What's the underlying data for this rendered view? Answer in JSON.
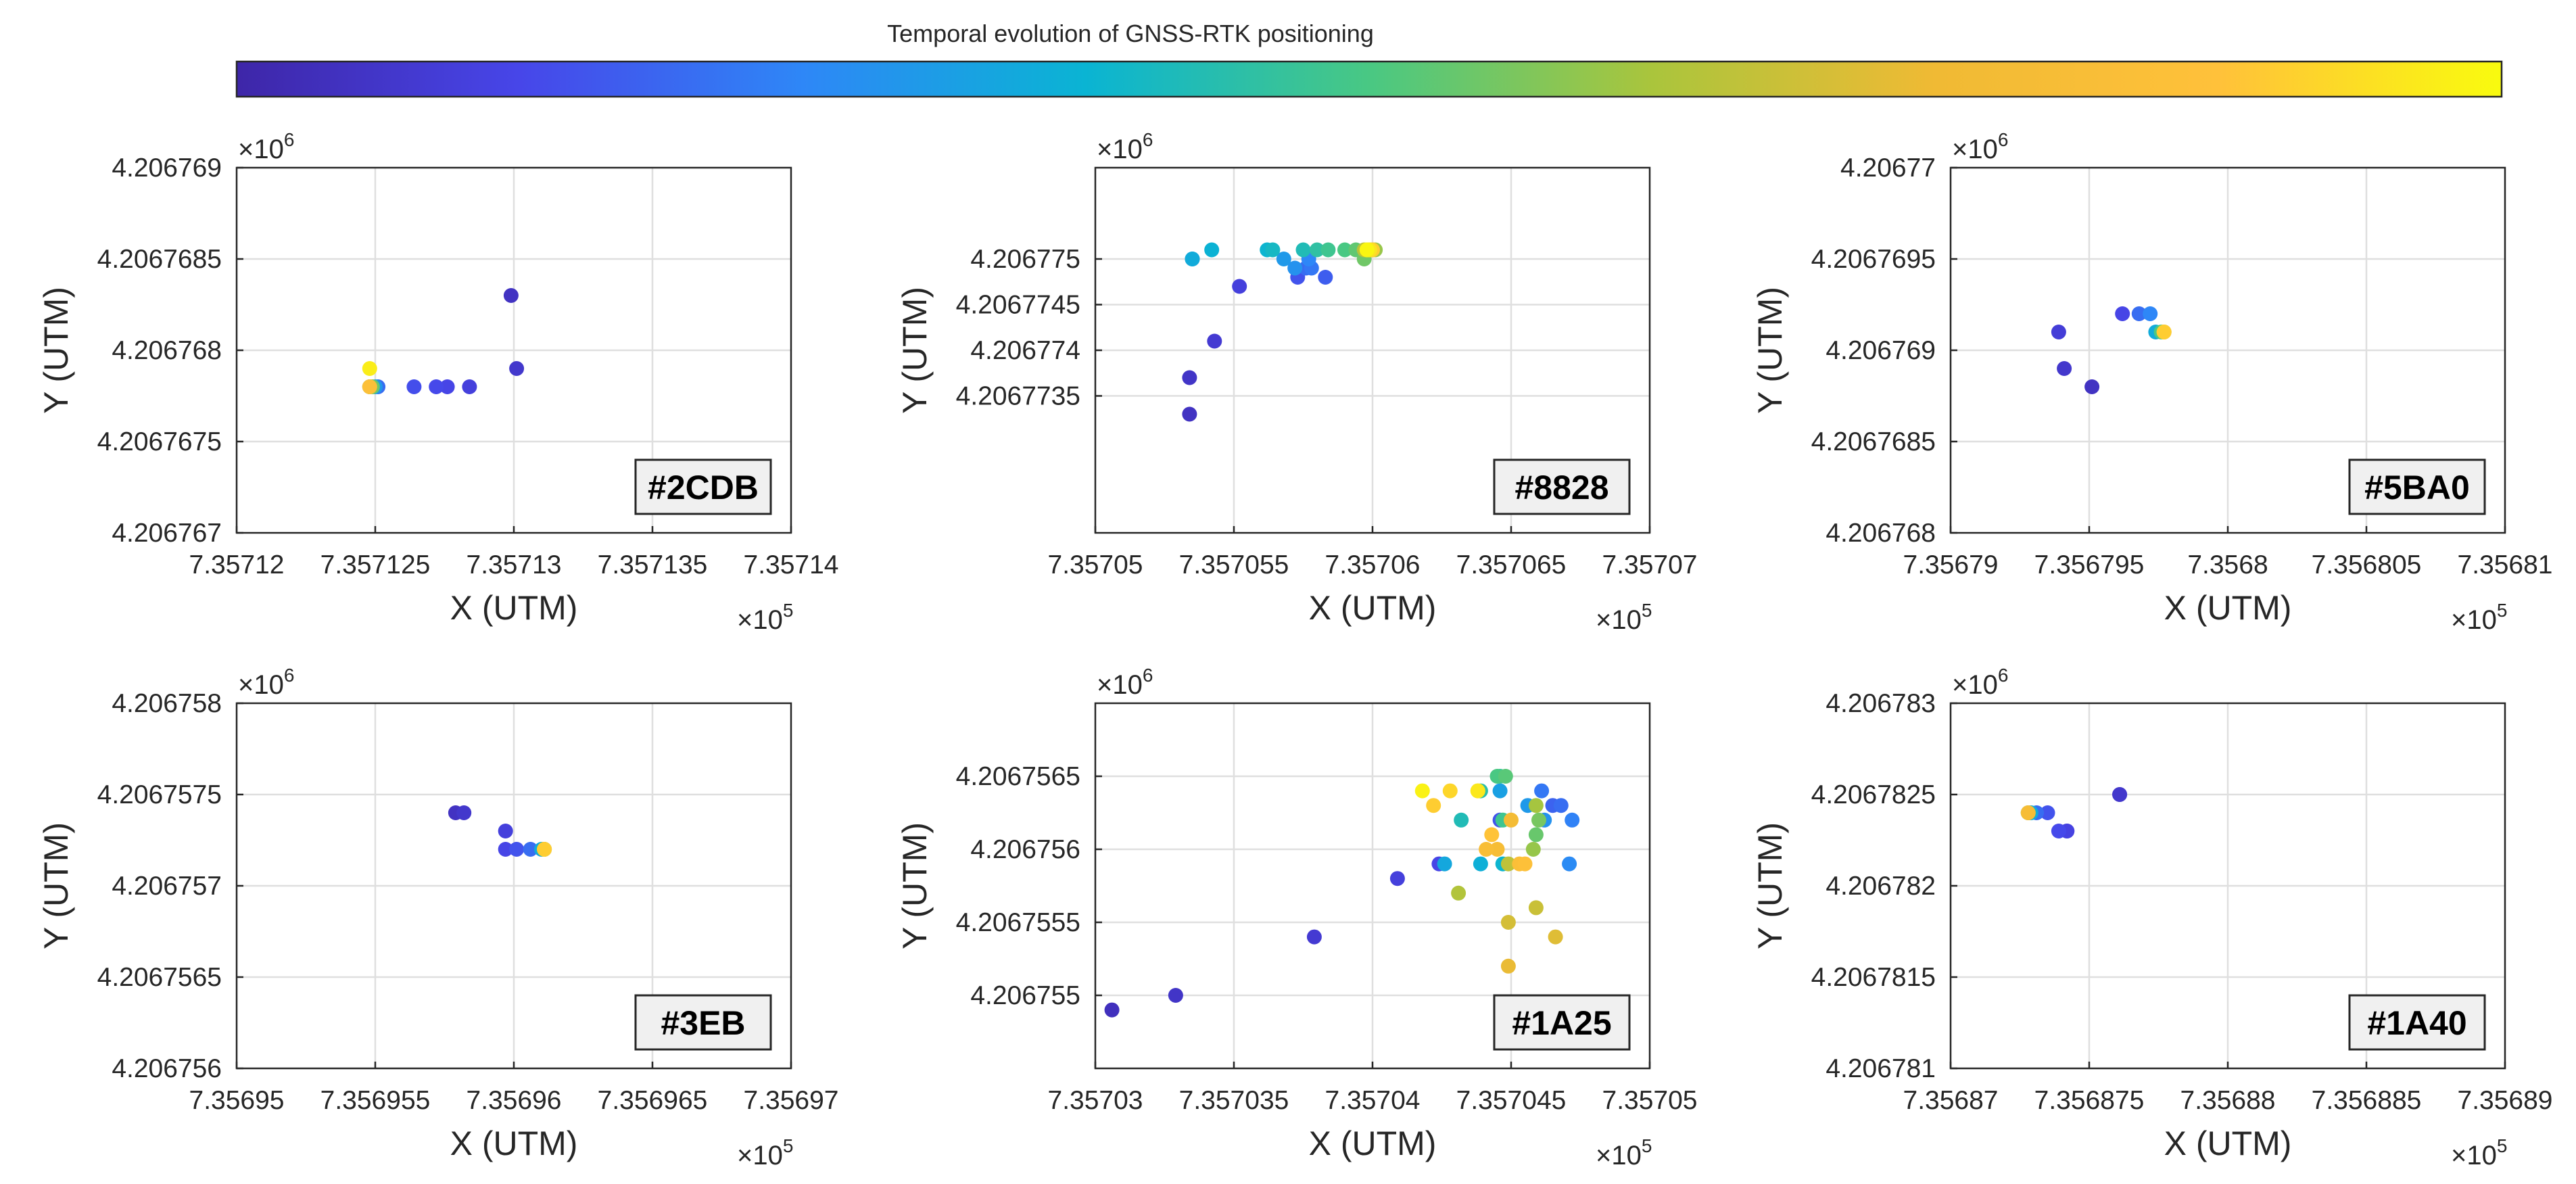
{
  "colorbar": {
    "title": "Temporal evolution of GNSS-RTK positioning",
    "stops": [
      "#3e26a8",
      "#4746e9",
      "#2e87f7",
      "#0ab4d3",
      "#49c883",
      "#aac53c",
      "#f0ba34",
      "#ffc13a",
      "#f9fb0e"
    ]
  },
  "multiplier_labels": {
    "x_base": "×10",
    "x_exp": "5",
    "y_base": "×10",
    "y_exp": "6"
  },
  "chart_data": [
    {
      "type": "scatter",
      "id_label": "#2CDB",
      "xlabel": "X (UTM)",
      "ylabel": "Y (UTM)",
      "xlim": [
        7.35712,
        7.35714
      ],
      "ylim": [
        4.206767,
        4.206769
      ],
      "xticks": [
        7.35712,
        7.357125,
        7.35713,
        7.357135,
        7.35714
      ],
      "xtick_labels": [
        "7.35712",
        "7.357125",
        "7.35713",
        "7.357135",
        "7.35714"
      ],
      "yticks": [
        4.206767,
        4.2067675,
        4.206768,
        4.2067685,
        4.206769
      ],
      "ytick_labels": [
        "4.206767",
        "4.2067675",
        "4.206768",
        "4.2067685",
        "4.206769"
      ],
      "points": [
        {
          "x": 7.3571299,
          "y": 4.2067683,
          "t": 0.05
        },
        {
          "x": 7.3571301,
          "y": 4.2067679,
          "t": 0.07
        },
        {
          "x": 7.3571284,
          "y": 4.2067678,
          "t": 0.1
        },
        {
          "x": 7.3571276,
          "y": 4.2067678,
          "t": 0.12
        },
        {
          "x": 7.3571272,
          "y": 4.2067678,
          "t": 0.13
        },
        {
          "x": 7.3571264,
          "y": 4.2067678,
          "t": 0.14
        },
        {
          "x": 7.3571251,
          "y": 4.2067678,
          "t": 0.2
        },
        {
          "x": 7.357125,
          "y": 4.2067678,
          "t": 0.3
        },
        {
          "x": 7.3571248,
          "y": 4.2067678,
          "t": 0.4
        },
        {
          "x": 7.3571249,
          "y": 4.2067678,
          "t": 0.55
        },
        {
          "x": 7.3571248,
          "y": 4.2067678,
          "t": 0.7
        },
        {
          "x": 7.3571248,
          "y": 4.2067678,
          "t": 0.85
        },
        {
          "x": 7.3571248,
          "y": 4.2067679,
          "t": 0.97
        }
      ]
    },
    {
      "type": "scatter",
      "id_label": "#8828",
      "xlabel": "X (UTM)",
      "ylabel": "Y (UTM)",
      "xlim": [
        7.35705,
        7.35707
      ],
      "ylim": [
        4.206772,
        4.206776
      ],
      "xticks": [
        7.35705,
        7.357055,
        7.35706,
        7.357065,
        7.35707
      ],
      "xtick_labels": [
        "7.35705",
        "7.357055",
        "7.35706",
        "7.357065",
        "7.35707"
      ],
      "yticks": [
        4.2067735,
        4.206774,
        4.2067745,
        4.206775
      ],
      "ytick_labels": [
        "4.2067735",
        "4.206774",
        "4.2067745",
        "4.206775"
      ],
      "points": [
        {
          "x": 7.3570534,
          "y": 4.2067733,
          "t": 0.05
        },
        {
          "x": 7.3570534,
          "y": 4.2067737,
          "t": 0.06
        },
        {
          "x": 7.3570543,
          "y": 4.2067741,
          "t": 0.08
        },
        {
          "x": 7.3570552,
          "y": 4.2067747,
          "t": 0.1
        },
        {
          "x": 7.3570573,
          "y": 4.2067748,
          "t": 0.15
        },
        {
          "x": 7.3570583,
          "y": 4.2067748,
          "t": 0.17
        },
        {
          "x": 7.3570576,
          "y": 4.2067749,
          "t": 0.2
        },
        {
          "x": 7.3570578,
          "y": 4.2067749,
          "t": 0.22
        },
        {
          "x": 7.3570577,
          "y": 4.206775,
          "t": 0.25
        },
        {
          "x": 7.3570572,
          "y": 4.2067749,
          "t": 0.28
        },
        {
          "x": 7.3570568,
          "y": 4.206775,
          "t": 0.3
        },
        {
          "x": 7.3570535,
          "y": 4.206775,
          "t": 0.32
        },
        {
          "x": 7.3570535,
          "y": 4.206775,
          "t": 0.35
        },
        {
          "x": 7.3570542,
          "y": 4.2067751,
          "t": 0.37
        },
        {
          "x": 7.3570562,
          "y": 4.2067751,
          "t": 0.38
        },
        {
          "x": 7.3570564,
          "y": 4.2067751,
          "t": 0.4
        },
        {
          "x": 7.3570575,
          "y": 4.2067751,
          "t": 0.42
        },
        {
          "x": 7.357058,
          "y": 4.2067751,
          "t": 0.45
        },
        {
          "x": 7.3570584,
          "y": 4.2067751,
          "t": 0.48
        },
        {
          "x": 7.357059,
          "y": 4.2067751,
          "t": 0.5
        },
        {
          "x": 7.3570594,
          "y": 4.2067751,
          "t": 0.53
        },
        {
          "x": 7.3570597,
          "y": 4.206775,
          "t": 0.55
        },
        {
          "x": 7.3570601,
          "y": 4.2067751,
          "t": 0.6
        },
        {
          "x": 7.3570597,
          "y": 4.2067751,
          "t": 0.65
        },
        {
          "x": 7.35706,
          "y": 4.2067751,
          "t": 0.7
        },
        {
          "x": 7.3570598,
          "y": 4.2067751,
          "t": 0.75
        },
        {
          "x": 7.3570599,
          "y": 4.2067751,
          "t": 0.8
        },
        {
          "x": 7.3570599,
          "y": 4.2067751,
          "t": 0.85
        },
        {
          "x": 7.35706,
          "y": 4.2067751,
          "t": 0.9
        },
        {
          "x": 7.3570599,
          "y": 4.2067751,
          "t": 0.95
        },
        {
          "x": 7.3570598,
          "y": 4.2067751,
          "t": 0.99
        }
      ]
    },
    {
      "type": "scatter",
      "id_label": "#5BA0",
      "xlabel": "X (UTM)",
      "ylabel": "Y (UTM)",
      "xlim": [
        7.35679,
        7.35681
      ],
      "ylim": [
        4.206768,
        4.20677
      ],
      "xticks": [
        7.35679,
        7.356795,
        7.3568,
        7.356805,
        7.35681
      ],
      "xtick_labels": [
        "7.35679",
        "7.356795",
        "7.3568",
        "7.356805",
        "7.35681"
      ],
      "yticks": [
        4.206768,
        4.2067685,
        4.206769,
        4.2067695,
        4.20677
      ],
      "ytick_labels": [
        "4.206768",
        "4.2067685",
        "4.206769",
        "4.2067695",
        "4.20677"
      ],
      "points": [
        {
          "x": 7.3567951,
          "y": 4.2067688,
          "t": 0.05
        },
        {
          "x": 7.3567941,
          "y": 4.2067689,
          "t": 0.07
        },
        {
          "x": 7.3567939,
          "y": 4.2067691,
          "t": 0.09
        },
        {
          "x": 7.3567962,
          "y": 4.2067692,
          "t": 0.12
        },
        {
          "x": 7.3567968,
          "y": 4.2067692,
          "t": 0.2
        },
        {
          "x": 7.3567972,
          "y": 4.2067692,
          "t": 0.25
        },
        {
          "x": 7.3567974,
          "y": 4.2067691,
          "t": 0.35
        },
        {
          "x": 7.3567976,
          "y": 4.2067691,
          "t": 0.5
        },
        {
          "x": 7.3567977,
          "y": 4.2067691,
          "t": 0.65
        },
        {
          "x": 7.3567977,
          "y": 4.2067691,
          "t": 0.8
        },
        {
          "x": 7.3567977,
          "y": 4.2067691,
          "t": 0.9
        }
      ]
    },
    {
      "type": "scatter",
      "id_label": "#3EB",
      "xlabel": "X (UTM)",
      "ylabel": "Y (UTM)",
      "xlim": [
        7.35695,
        7.35697
      ],
      "ylim": [
        4.206756,
        4.206758
      ],
      "xticks": [
        7.35695,
        7.356955,
        7.35696,
        7.356965,
        7.35697
      ],
      "xtick_labels": [
        "7.35695",
        "7.356955",
        "7.35696",
        "7.356965",
        "7.35697"
      ],
      "yticks": [
        4.206756,
        4.2067565,
        4.206757,
        4.2067575,
        4.206758
      ],
      "ytick_labels": [
        "4.206756",
        "4.2067565",
        "4.206757",
        "4.2067575",
        "4.206758"
      ],
      "points": [
        {
          "x": 7.3569579,
          "y": 4.2067574,
          "t": 0.05
        },
        {
          "x": 7.3569582,
          "y": 4.2067574,
          "t": 0.07
        },
        {
          "x": 7.3569597,
          "y": 4.2067573,
          "t": 0.1
        },
        {
          "x": 7.3569597,
          "y": 4.2067572,
          "t": 0.12
        },
        {
          "x": 7.3569601,
          "y": 4.2067572,
          "t": 0.15
        },
        {
          "x": 7.3569606,
          "y": 4.2067572,
          "t": 0.2
        },
        {
          "x": 7.356961,
          "y": 4.2067572,
          "t": 0.35
        },
        {
          "x": 7.3569611,
          "y": 4.2067572,
          "t": 0.5
        },
        {
          "x": 7.3569611,
          "y": 4.2067572,
          "t": 0.65
        },
        {
          "x": 7.3569611,
          "y": 4.2067572,
          "t": 0.8
        },
        {
          "x": 7.3569611,
          "y": 4.2067572,
          "t": 0.9
        }
      ]
    },
    {
      "type": "scatter",
      "id_label": "#1A25",
      "xlabel": "X (UTM)",
      "ylabel": "Y (UTM)",
      "xlim": [
        7.35703,
        7.35705
      ],
      "ylim": [
        4.2067545,
        4.206757
      ],
      "xticks": [
        7.35703,
        7.357035,
        7.35704,
        7.357045,
        7.35705
      ],
      "xtick_labels": [
        "7.35703",
        "7.357035",
        "7.35704",
        "7.357045",
        "7.35705"
      ],
      "yticks": [
        4.206755,
        4.2067555,
        4.206756,
        4.2067565
      ],
      "ytick_labels": [
        "4.206755",
        "4.2067555",
        "4.206756",
        "4.2067565"
      ],
      "points": [
        {
          "x": 7.3570306,
          "y": 4.2067549,
          "t": 0.04
        },
        {
          "x": 7.3570329,
          "y": 4.206755,
          "t": 0.06
        },
        {
          "x": 7.3570379,
          "y": 4.2067554,
          "t": 0.08
        },
        {
          "x": 7.3570409,
          "y": 4.2067558,
          "t": 0.1
        },
        {
          "x": 7.3570424,
          "y": 4.2067559,
          "t": 0.12
        },
        {
          "x": 7.3570446,
          "y": 4.2067562,
          "t": 0.15
        },
        {
          "x": 7.3570465,
          "y": 4.2067563,
          "t": 0.18
        },
        {
          "x": 7.3570468,
          "y": 4.2067563,
          "t": 0.2
        },
        {
          "x": 7.3570461,
          "y": 4.2067564,
          "t": 0.22
        },
        {
          "x": 7.3570472,
          "y": 4.2067562,
          "t": 0.24
        },
        {
          "x": 7.3570471,
          "y": 4.2067559,
          "t": 0.26
        },
        {
          "x": 7.3570462,
          "y": 4.2067562,
          "t": 0.28
        },
        {
          "x": 7.3570456,
          "y": 4.2067563,
          "t": 0.3
        },
        {
          "x": 7.3570446,
          "y": 4.2067564,
          "t": 0.32
        },
        {
          "x": 7.3570426,
          "y": 4.2067559,
          "t": 0.34
        },
        {
          "x": 7.3570439,
          "y": 4.2067559,
          "t": 0.36
        },
        {
          "x": 7.3570447,
          "y": 4.2067559,
          "t": 0.38
        },
        {
          "x": 7.3570432,
          "y": 4.2067562,
          "t": 0.42
        },
        {
          "x": 7.3570439,
          "y": 4.2067564,
          "t": 0.44
        },
        {
          "x": 7.3570446,
          "y": 4.2067565,
          "t": 0.46
        },
        {
          "x": 7.3570447,
          "y": 4.2067562,
          "t": 0.48
        },
        {
          "x": 7.3570445,
          "y": 4.2067565,
          "t": 0.5
        },
        {
          "x": 7.3570448,
          "y": 4.2067565,
          "t": 0.52
        },
        {
          "x": 7.3570459,
          "y": 4.2067561,
          "t": 0.54
        },
        {
          "x": 7.357046,
          "y": 4.2067562,
          "t": 0.56
        },
        {
          "x": 7.3570458,
          "y": 4.206756,
          "t": 0.6
        },
        {
          "x": 7.3570459,
          "y": 4.2067563,
          "t": 0.62
        },
        {
          "x": 7.3570431,
          "y": 4.2067557,
          "t": 0.64
        },
        {
          "x": 7.3570449,
          "y": 4.2067559,
          "t": 0.66
        },
        {
          "x": 7.3570459,
          "y": 4.2067556,
          "t": 0.68
        },
        {
          "x": 7.3570449,
          "y": 4.2067555,
          "t": 0.7
        },
        {
          "x": 7.3570466,
          "y": 4.2067554,
          "t": 0.72
        },
        {
          "x": 7.3570449,
          "y": 4.2067552,
          "t": 0.74
        },
        {
          "x": 7.357045,
          "y": 4.2067562,
          "t": 0.78
        },
        {
          "x": 7.3570445,
          "y": 4.206756,
          "t": 0.8
        },
        {
          "x": 7.3570441,
          "y": 4.206756,
          "t": 0.82
        },
        {
          "x": 7.3570453,
          "y": 4.2067559,
          "t": 0.84
        },
        {
          "x": 7.3570455,
          "y": 4.2067559,
          "t": 0.86
        },
        {
          "x": 7.3570443,
          "y": 4.2067561,
          "t": 0.88
        },
        {
          "x": 7.3570422,
          "y": 4.2067563,
          "t": 0.9
        },
        {
          "x": 7.3570428,
          "y": 4.2067564,
          "t": 0.92
        },
        {
          "x": 7.3570438,
          "y": 4.2067564,
          "t": 0.94
        },
        {
          "x": 7.3570438,
          "y": 4.2067564,
          "t": 0.96
        },
        {
          "x": 7.3570418,
          "y": 4.2067564,
          "t": 0.98
        }
      ]
    },
    {
      "type": "scatter",
      "id_label": "#1A40",
      "xlabel": "X (UTM)",
      "ylabel": "Y (UTM)",
      "xlim": [
        7.35687,
        7.35689
      ],
      "ylim": [
        4.206781,
        4.206783
      ],
      "xticks": [
        7.35687,
        7.356875,
        7.35688,
        7.356885,
        7.35689
      ],
      "xtick_labels": [
        "7.35687",
        "7.356875",
        "7.35688",
        "7.356885",
        "7.35689"
      ],
      "yticks": [
        4.206781,
        4.2067815,
        4.206782,
        4.2067825,
        4.206783
      ],
      "ytick_labels": [
        "4.206781",
        "4.2067815",
        "4.206782",
        "4.2067825",
        "4.206783"
      ],
      "points": [
        {
          "x": 7.3568761,
          "y": 4.2067825,
          "t": 0.05
        },
        {
          "x": 7.3568761,
          "y": 4.2067825,
          "t": 0.07
        },
        {
          "x": 7.3568742,
          "y": 4.2067823,
          "t": 0.09
        },
        {
          "x": 7.3568742,
          "y": 4.2067823,
          "t": 0.11
        },
        {
          "x": 7.3568739,
          "y": 4.2067823,
          "t": 0.13
        },
        {
          "x": 7.3568735,
          "y": 4.2067824,
          "t": 0.15
        },
        {
          "x": 7.3568731,
          "y": 4.2067824,
          "t": 0.2
        },
        {
          "x": 7.3568729,
          "y": 4.2067824,
          "t": 0.35
        },
        {
          "x": 7.3568728,
          "y": 4.2067824,
          "t": 0.5
        },
        {
          "x": 7.3568728,
          "y": 4.2067824,
          "t": 0.65
        },
        {
          "x": 7.3568728,
          "y": 4.2067824,
          "t": 0.8
        }
      ]
    }
  ]
}
